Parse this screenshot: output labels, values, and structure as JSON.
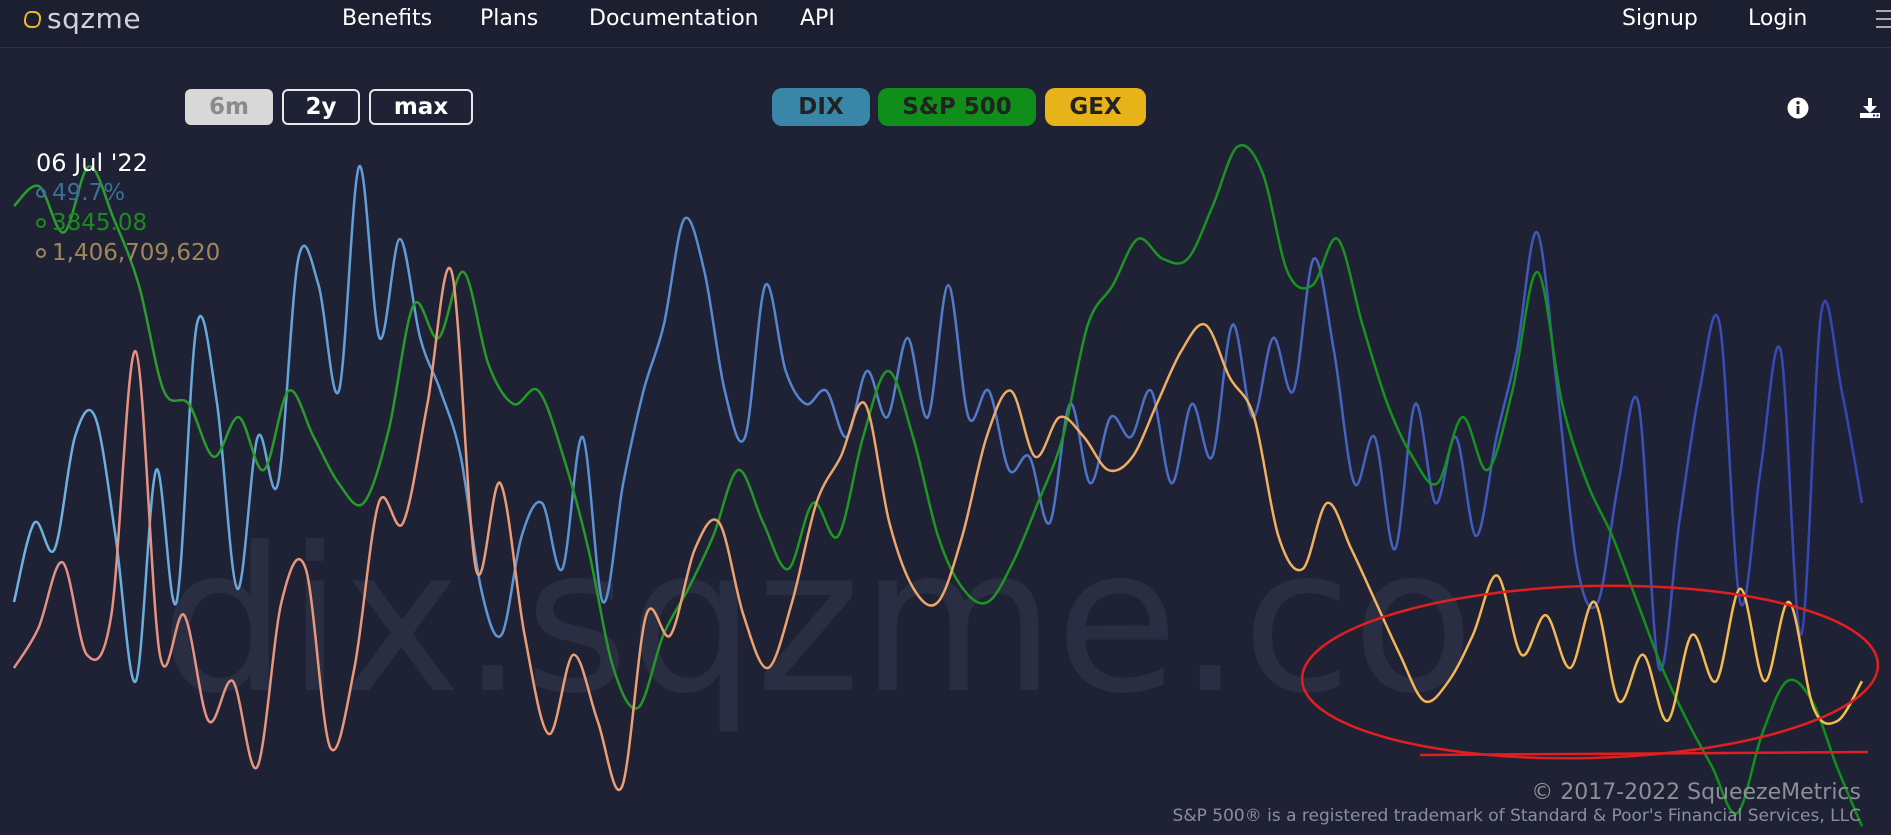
{
  "nav": {
    "brand": "sqzme",
    "links": [
      "Benefits",
      "Plans",
      "Documentation",
      "API"
    ],
    "signup": "Signup",
    "login": "Login"
  },
  "range_buttons": [
    {
      "label": "6m",
      "active": true
    },
    {
      "label": "2y",
      "active": false
    },
    {
      "label": "max",
      "active": false
    }
  ],
  "series_buttons": [
    {
      "label": "DIX",
      "color": "#3a86a8"
    },
    {
      "label": "S&P 500",
      "color": "#0f8f1a"
    },
    {
      "label": "GEX",
      "color": "#e8b318"
    }
  ],
  "readout": {
    "date": "06 Jul '22",
    "dix": "49.7%",
    "spx": "3845.08",
    "gex": "1,406,709,620"
  },
  "watermark": "dix.sqzme.co",
  "footer": {
    "copyright": "© 2017-2022 SqueezeMetrics",
    "trademark": "S&P 500® is a registered trademark of Standard & Poor's Financial Services, LLC"
  },
  "colors": {
    "background": "#1f2235",
    "dix": "#5a9bd8",
    "spx": "#0f8f1a",
    "gex": "#f2b64a",
    "annotation": "#e02020"
  },
  "chart_data": {
    "type": "line",
    "series": [
      {
        "name": "DIX",
        "color_start": "#6fb3e0",
        "color_end": "#3544b5",
        "values": [
          0.3,
          0.42,
          0.38,
          0.55,
          0.58,
          0.4,
          0.18,
          0.5,
          0.3,
          0.72,
          0.6,
          0.32,
          0.55,
          0.48,
          0.82,
          0.78,
          0.62,
          0.96,
          0.7,
          0.85,
          0.7,
          0.62,
          0.52,
          0.32,
          0.25,
          0.4,
          0.45,
          0.35,
          0.55,
          0.3,
          0.48,
          0.62,
          0.72,
          0.88,
          0.8,
          0.62,
          0.55,
          0.78,
          0.65,
          0.6,
          0.62,
          0.55,
          0.65,
          0.58,
          0.7,
          0.58,
          0.78,
          0.58,
          0.62,
          0.5,
          0.52,
          0.42,
          0.6,
          0.48,
          0.58,
          0.55,
          0.62,
          0.48,
          0.6,
          0.52,
          0.72,
          0.58,
          0.7,
          0.62,
          0.82,
          0.68,
          0.48,
          0.55,
          0.38,
          0.6,
          0.45,
          0.55,
          0.4,
          0.55,
          0.68,
          0.86,
          0.62,
          0.35,
          0.3,
          0.48,
          0.6,
          0.2,
          0.42,
          0.62,
          0.72,
          0.3,
          0.5,
          0.68,
          0.25,
          0.74,
          0.62,
          0.45
        ]
      },
      {
        "name": "S&P 500",
        "color_start": "#2e9d2e",
        "color_end": "#0f8f1a",
        "values": [
          0.9,
          0.93,
          0.86,
          0.96,
          0.88,
          0.78,
          0.62,
          0.6,
          0.52,
          0.58,
          0.5,
          0.62,
          0.55,
          0.48,
          0.45,
          0.56,
          0.75,
          0.7,
          0.8,
          0.66,
          0.6,
          0.62,
          0.52,
          0.38,
          0.2,
          0.14,
          0.25,
          0.32,
          0.4,
          0.5,
          0.42,
          0.35,
          0.45,
          0.4,
          0.55,
          0.65,
          0.55,
          0.4,
          0.32,
          0.3,
          0.36,
          0.45,
          0.55,
          0.72,
          0.78,
          0.85,
          0.82,
          0.82,
          0.9,
          0.99,
          0.95,
          0.8,
          0.78,
          0.85,
          0.72,
          0.6,
          0.52,
          0.48,
          0.58,
          0.5,
          0.62,
          0.8,
          0.6,
          0.48,
          0.4,
          0.3,
          0.2,
          0.12,
          0.05,
          -0.02,
          0.1,
          0.18,
          0.15,
          0.05,
          -0.04
        ]
      },
      {
        "name": "GEX",
        "color_start": "#e58f86",
        "color_end": "#f7c04a",
        "values": [
          0.2,
          0.26,
          0.36,
          0.22,
          0.28,
          0.68,
          0.22,
          0.28,
          0.12,
          0.18,
          0.05,
          0.3,
          0.35,
          0.08,
          0.2,
          0.45,
          0.42,
          0.6,
          0.8,
          0.35,
          0.48,
          0.25,
          0.1,
          0.22,
          0.12,
          0.02,
          0.28,
          0.25,
          0.38,
          0.42,
          0.28,
          0.2,
          0.3,
          0.45,
          0.52,
          0.6,
          0.42,
          0.32,
          0.3,
          0.4,
          0.55,
          0.62,
          0.52,
          0.58,
          0.55,
          0.5,
          0.52,
          0.6,
          0.68,
          0.72,
          0.64,
          0.58,
          0.4,
          0.35,
          0.45,
          0.38,
          0.3,
          0.22,
          0.15,
          0.18,
          0.25,
          0.34,
          0.22,
          0.28,
          0.2,
          0.3,
          0.15,
          0.22,
          0.12,
          0.25,
          0.18,
          0.32,
          0.18,
          0.3,
          0.14,
          0.12,
          0.18
        ]
      }
    ]
  }
}
